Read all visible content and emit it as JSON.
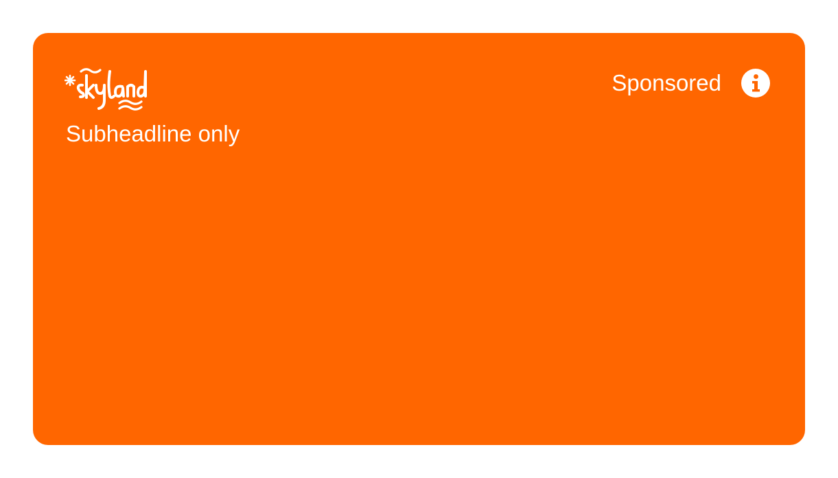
{
  "ad": {
    "brand_logo_text": "skyland",
    "subheadline": "Subheadline only",
    "sponsored_label": "Sponsored",
    "info_icon": "info-icon",
    "background_color": "#ff6600",
    "text_color": "#ffffff"
  }
}
